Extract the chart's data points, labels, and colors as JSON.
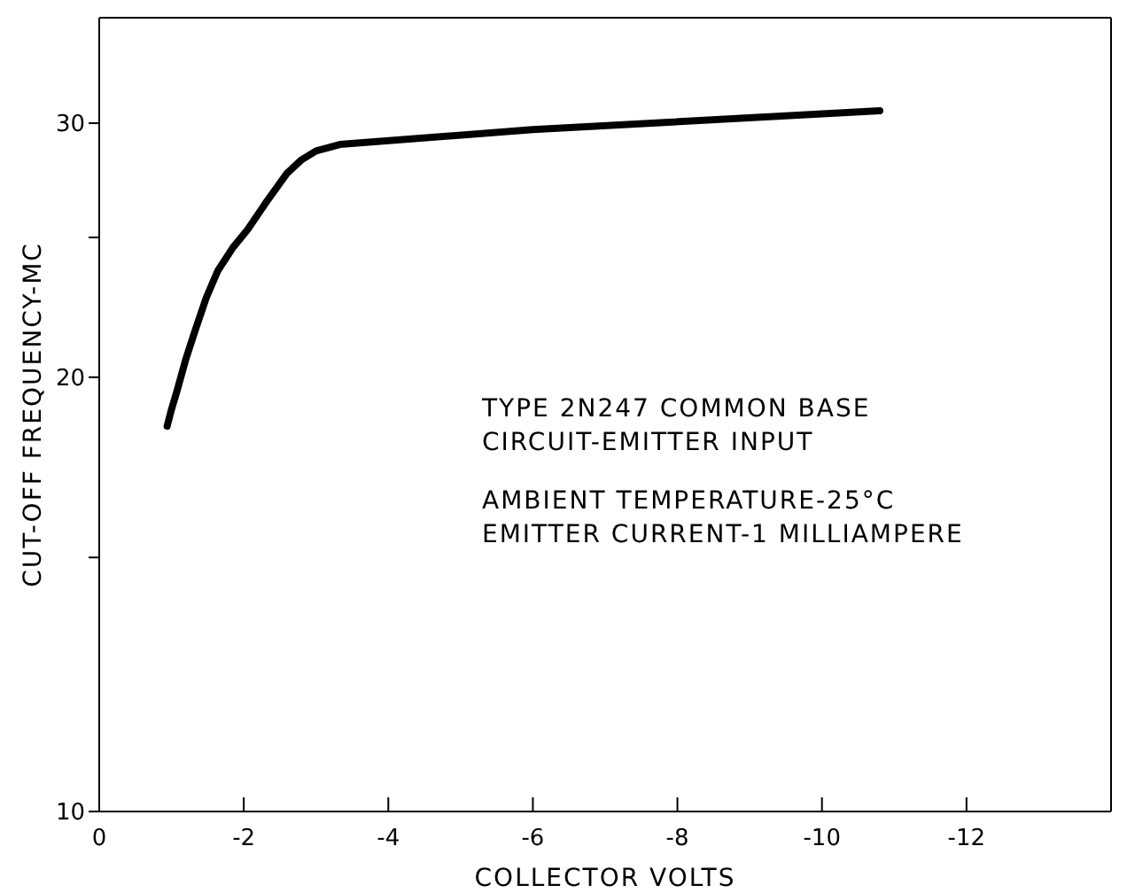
{
  "chart_data": {
    "type": "line",
    "xlabel": "COLLECTOR VOLTS",
    "ylabel": "CUT-OFF FREQUENCY-MC",
    "annotations": [
      "TYPE 2N247 COMMON BASE",
      "CIRCUIT-EMITTER INPUT",
      "AMBIENT TEMPERATURE-25°C",
      "EMITTER CURRENT-1 MILLIAMPERE"
    ],
    "x": [
      -0.94,
      -1.0,
      -1.08,
      -1.2,
      -1.32,
      -1.48,
      -1.64,
      -1.85,
      -2.05,
      -2.3,
      -2.6,
      -2.8,
      -3.0,
      -3.33,
      -6.0,
      -10.8
    ],
    "series": [
      {
        "color": "#000000",
        "values": [
          18.5,
          19.0,
          19.6,
          20.6,
          21.5,
          22.7,
          23.7,
          24.6,
          25.3,
          26.4,
          27.7,
          28.3,
          28.7,
          29.0,
          29.7,
          30.6
        ]
      }
    ],
    "xlim": [
      0,
      -14
    ],
    "xticks": [
      0,
      -2,
      -4,
      -6,
      -8,
      -10,
      -12
    ],
    "ylim": [
      10,
      35.5
    ],
    "yticks": [
      10,
      {
        "value": 15,
        "label": null
      },
      20,
      {
        "value": 25,
        "label": null
      },
      30
    ],
    "log": "y",
    "grid": false,
    "legend": false,
    "marker": "none",
    "line_style": "solid"
  }
}
